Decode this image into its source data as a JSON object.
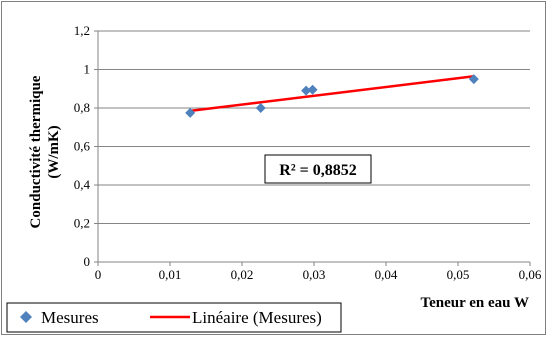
{
  "chart_data": {
    "type": "scatter",
    "xlabel": "Teneur en eau W",
    "ylabel_line1": "Conductivité thermique",
    "ylabel_line2": "(W/mK)",
    "xlim": [
      0,
      0.06
    ],
    "ylim": [
      0,
      1.2
    ],
    "x_ticks": [
      0,
      0.01,
      0.02,
      0.03,
      0.04,
      0.05,
      0.06
    ],
    "x_tick_labels": [
      "0",
      "0,01",
      "0,02",
      "0,03",
      "0,04",
      "0,05",
      "0,06"
    ],
    "y_ticks": [
      0,
      0.2,
      0.4,
      0.6,
      0.8,
      1.0,
      1.2
    ],
    "y_tick_labels": [
      "0",
      "0,2",
      "0,4",
      "0,6",
      "0,8",
      "1",
      "1,2"
    ],
    "grid": "horizontal",
    "legend_position": "bottom-left",
    "series": [
      {
        "name": "Mesures",
        "marker": "diamond",
        "color": "#4f81bd",
        "x": [
          0.0128,
          0.0226,
          0.0289,
          0.0298,
          0.0522
        ],
        "y": [
          0.775,
          0.8,
          0.89,
          0.895,
          0.95
        ]
      },
      {
        "name": "Linéaire (Mesures)",
        "kind": "trendline",
        "color": "#ff0000",
        "x": [
          0.0128,
          0.0522
        ],
        "y": [
          0.785,
          0.965
        ]
      }
    ],
    "annotation": "R² = 0,8852"
  }
}
